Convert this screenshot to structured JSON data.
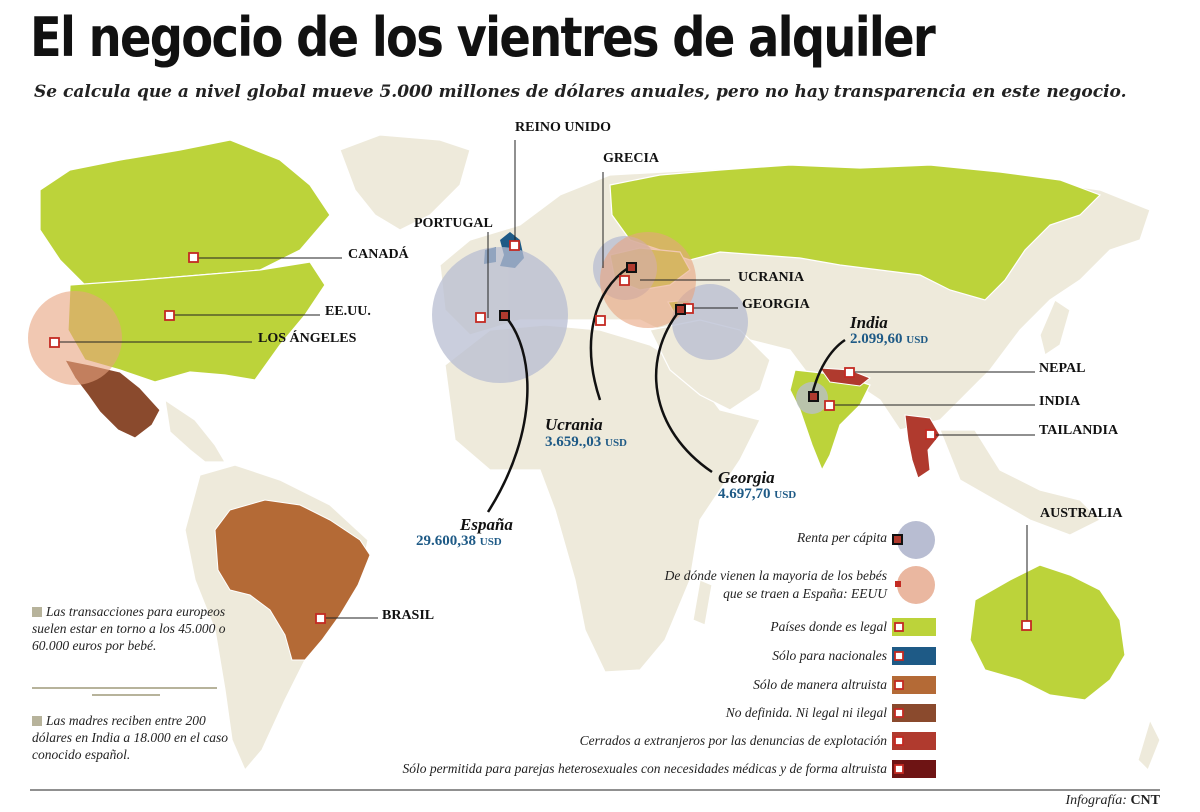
{
  "header": {
    "title": "El negocio de los vientres de alquiler",
    "subtitle": "Se calcula que a nivel global mueve 5.000 millones de dólares anuales, pero no hay transparencia en este negocio."
  },
  "colors": {
    "legal": "#bcd33a",
    "nacionales": "#1e5a86",
    "altruista": "#b46a36",
    "no_definida": "#8a4a2d",
    "cerrados": "#b03a2e",
    "heterosexuales": "#6e1414",
    "land": "#eeeadb",
    "renta_circle": "#b8bdd2",
    "origen_circle": "#eab7a0"
  },
  "country_labels": {
    "canada": "CANADÁ",
    "eeuu": "EE.UU.",
    "los_angeles": "LOS ÁNGELES",
    "reino_unido": "REINO UNIDO",
    "portugal": "PORTUGAL",
    "grecia": "GRECIA",
    "ucrania": "UCRANIA",
    "georgia": "GEORGIA",
    "nepal": "NEPAL",
    "india": "INDIA",
    "tailandia": "TAILANDIA",
    "australia": "AUSTRALIA",
    "brasil": "BRASIL"
  },
  "renta": [
    {
      "name": "España",
      "value": "29.600,38",
      "unit": "USD"
    },
    {
      "name": "Ucrania",
      "value": "3.659.,03",
      "unit": "USD"
    },
    {
      "name": "Georgia",
      "value": "4.697,70",
      "unit": "USD"
    },
    {
      "name": "India",
      "value": "2.099,60",
      "unit": "USD"
    }
  ],
  "notes": [
    "Las transacciones para europeos suelen estar en torno a los 45.000 o 60.000 euros por bebé.",
    "Las madres reciben entre 200 dólares en India a 18.000 en el caso conocido español."
  ],
  "legend": {
    "renta": "Renta per cápita",
    "origen": "De dónde vienen la mayoria de los bebés que se traen a España: EEUU",
    "legal": "Países donde es legal",
    "nacionales": "Sólo para nacionales",
    "altruista": "Sólo de manera altruista",
    "no_definida": "No definida. Ni legal ni ilegal",
    "cerrados": "Cerrados a extranjeros por las denuncias de explotación",
    "heterosexuales": "Sólo permitida para parejas heterosexuales con necesidades médicas y de forma altruista"
  },
  "credit": {
    "prefix": "Infografía:",
    "name": "CNT"
  }
}
